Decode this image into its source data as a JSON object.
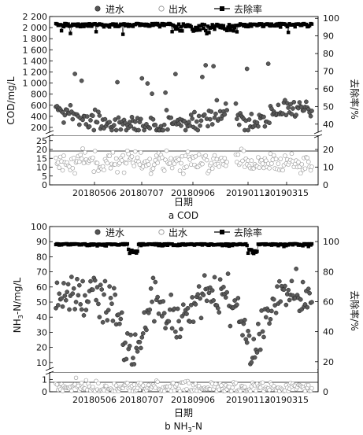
{
  "chart_data": [
    {
      "type": "scatter",
      "caption": "a COD",
      "xlabel": "日期",
      "ylabel_left": "COD/mg/L",
      "ylabel_right": "去除率/%",
      "x_tick_labels": [
        "20180506",
        "20180707",
        "20180906",
        "20190113",
        "20190315"
      ],
      "left_axis": {
        "break": true,
        "upper_ticks": [
          200,
          400,
          600,
          800,
          1000,
          1200,
          1400,
          1600,
          1800,
          2000,
          2200
        ],
        "upper_tick_labels": [
          "200",
          "400",
          "600",
          "800",
          "1 000",
          "1 200",
          "1 400",
          "1 600",
          "1 800",
          "2 000",
          "2 200"
        ],
        "lower_ticks": [
          0,
          5,
          10,
          15,
          20,
          25
        ],
        "upper_range": [
          100,
          2200
        ],
        "lower_range": [
          0,
          28
        ]
      },
      "right_axis": {
        "break": true,
        "upper_ticks": [
          40,
          50,
          60,
          70,
          80,
          90,
          100
        ],
        "lower_ticks": [
          0,
          10,
          20
        ],
        "upper_range": [
          35,
          101
        ],
        "lower_range": [
          0,
          28
        ]
      },
      "reference_line_right": 20,
      "legend": [
        "进水",
        "出水",
        "去除率"
      ],
      "legend_position": "top",
      "series": [
        {
          "name": "进水",
          "marker": "filled-circle",
          "color": "#555555"
        },
        {
          "name": "出水",
          "marker": "open-circle",
          "color": "#999999"
        },
        {
          "name": "去除率",
          "marker": "filled-square-line",
          "color": "#000000"
        }
      ]
    },
    {
      "type": "scatter",
      "caption": "b NH3-N",
      "caption_parts": {
        "prefix": "b NH",
        "sub": "3",
        "suffix": "-N"
      },
      "xlabel": "日期",
      "ylabel_left": "NH3-N/mg/L",
      "ylabel_left_parts": {
        "prefix": "NH",
        "sub": "3",
        "suffix": "-N/mg/L"
      },
      "ylabel_right": "去除率/%",
      "x_tick_labels": [
        "20180506",
        "20180707",
        "20180906",
        "20190113",
        "20190315"
      ],
      "left_axis": {
        "break": true,
        "upper_ticks": [
          10,
          20,
          30,
          40,
          50,
          60,
          70,
          80,
          90,
          100
        ],
        "lower_ticks": [
          0,
          1
        ],
        "upper_range": [
          5,
          100
        ],
        "lower_range": [
          0,
          1.6
        ]
      },
      "right_axis": {
        "ticks": [
          0,
          20,
          40,
          60,
          80,
          100
        ],
        "range": [
          0,
          110
        ]
      },
      "reference_line_left": 1,
      "legend": [
        "进水",
        "出水",
        "去除率"
      ],
      "legend_position": "top",
      "series": [
        {
          "name": "进水",
          "marker": "filled-circle",
          "color": "#555555"
        },
        {
          "name": "出水",
          "marker": "open-circle",
          "color": "#999999"
        },
        {
          "name": "去除率",
          "marker": "filled-square-line",
          "color": "#000000"
        }
      ]
    }
  ]
}
